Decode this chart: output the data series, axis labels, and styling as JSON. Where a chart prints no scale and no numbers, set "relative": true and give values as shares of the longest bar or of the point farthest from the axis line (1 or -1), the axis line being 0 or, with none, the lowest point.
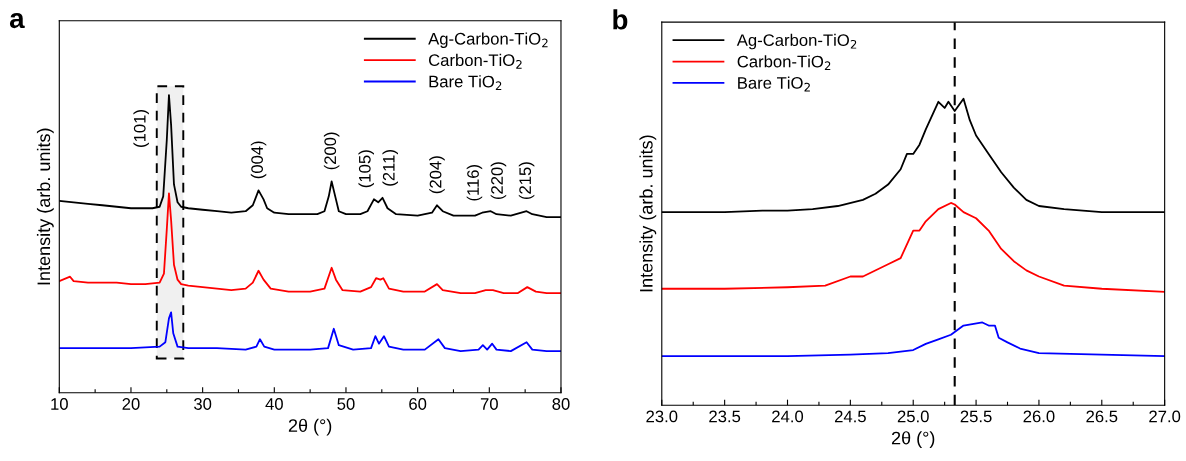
{
  "chart_data": [
    {
      "type": "line",
      "relative": true,
      "xlabel": "2θ (°)",
      "ylabel": "Intensity (arb. units)",
      "xlim": [
        10,
        80
      ],
      "xticks": [
        10,
        {
          "value": 15,
          "label": null
        },
        20,
        {
          "value": 25,
          "label": null
        },
        30,
        {
          "value": 35,
          "label": null
        },
        40,
        {
          "value": 45,
          "label": null
        },
        50,
        {
          "value": 55,
          "label": null
        },
        60,
        {
          "value": 65,
          "label": null
        },
        70,
        {
          "value": 75,
          "label": null
        },
        80
      ],
      "tick_labels": "x",
      "legend": "top right",
      "grid": false,
      "marker": "none",
      "line_style": "solid",
      "series": [
        {
          "name": "Ag-Carbon-TiO$_{2}$",
          "color": "#000000",
          "x": [
            10,
            12,
            14,
            16,
            18,
            20,
            22,
            23,
            24,
            24.5,
            25,
            25.3,
            25.6,
            26,
            26.5,
            27,
            28,
            30,
            32,
            34,
            36,
            37,
            37.8,
            38.5,
            39,
            40,
            42,
            44,
            46,
            47,
            47.6,
            48,
            48.5,
            49,
            50,
            52,
            53,
            53.9,
            54.5,
            55.1,
            55.8,
            57,
            60,
            62,
            62.7,
            63.5,
            65,
            68,
            69,
            70.2,
            71,
            73,
            75.2,
            76,
            78,
            80
          ],
          "values": [
            0.645,
            0.64,
            0.635,
            0.63,
            0.625,
            0.62,
            0.62,
            0.62,
            0.625,
            0.66,
            0.85,
            1.0,
            0.9,
            0.7,
            0.64,
            0.625,
            0.62,
            0.615,
            0.61,
            0.605,
            0.61,
            0.63,
            0.68,
            0.65,
            0.62,
            0.605,
            0.6,
            0.6,
            0.6,
            0.61,
            0.66,
            0.71,
            0.66,
            0.61,
            0.6,
            0.6,
            0.61,
            0.65,
            0.64,
            0.655,
            0.62,
            0.6,
            0.595,
            0.605,
            0.63,
            0.61,
            0.595,
            0.595,
            0.605,
            0.61,
            0.6,
            0.595,
            0.61,
            0.6,
            0.59,
            0.59
          ]
        },
        {
          "name": "Carbon-TiO$_{2}$",
          "color": "#ff0000",
          "x": [
            10,
            11.5,
            12,
            14,
            16,
            18,
            20,
            22,
            24,
            24.6,
            25,
            25.3,
            25.6,
            26,
            26.5,
            27,
            28,
            30,
            32,
            34,
            36,
            37,
            37.8,
            38.5,
            39.5,
            42,
            45,
            47,
            48,
            48.6,
            49.5,
            52,
            53.5,
            54.2,
            54.8,
            55.2,
            56,
            58,
            61,
            62.7,
            63.5,
            66,
            68,
            69.5,
            70.5,
            72,
            74,
            75.3,
            76.5,
            78,
            80
          ],
          "values": [
            0.375,
            0.39,
            0.375,
            0.37,
            0.37,
            0.37,
            0.365,
            0.365,
            0.37,
            0.4,
            0.55,
            0.67,
            0.58,
            0.43,
            0.38,
            0.365,
            0.36,
            0.355,
            0.35,
            0.345,
            0.35,
            0.37,
            0.41,
            0.38,
            0.35,
            0.34,
            0.34,
            0.35,
            0.42,
            0.38,
            0.345,
            0.34,
            0.355,
            0.385,
            0.38,
            0.385,
            0.35,
            0.34,
            0.34,
            0.365,
            0.345,
            0.335,
            0.335,
            0.345,
            0.345,
            0.335,
            0.335,
            0.355,
            0.34,
            0.335,
            0.335
          ]
        },
        {
          "name": "Bare TiO$_{2}$",
          "color": "#0000ff",
          "x": [
            10,
            15,
            20,
            24,
            24.8,
            25.3,
            25.6,
            25.9,
            26.5,
            28,
            32,
            36,
            37.5,
            38,
            38.6,
            40,
            45,
            47.5,
            48.3,
            49,
            51,
            53.5,
            54.1,
            54.6,
            55.3,
            56,
            58,
            61,
            62.9,
            63.8,
            66,
            68.5,
            69.1,
            69.7,
            70.4,
            71,
            73,
            75.2,
            76,
            78,
            80
          ],
          "values": [
            0.15,
            0.15,
            0.15,
            0.155,
            0.17,
            0.25,
            0.27,
            0.2,
            0.155,
            0.15,
            0.15,
            0.145,
            0.155,
            0.18,
            0.155,
            0.145,
            0.145,
            0.15,
            0.215,
            0.16,
            0.145,
            0.15,
            0.19,
            0.165,
            0.19,
            0.155,
            0.145,
            0.145,
            0.18,
            0.15,
            0.14,
            0.145,
            0.16,
            0.145,
            0.165,
            0.145,
            0.14,
            0.17,
            0.145,
            0.14,
            0.14
          ]
        }
      ],
      "bands": [
        {
          "axis": "x",
          "from": 23.6,
          "to": 27.3,
          "color": "#000000"
        }
      ],
      "annotations": [
        "a",
        {
          "text": "(101)",
          "x": 25.3,
          "y": 1.0
        },
        {
          "text": "(004)",
          "x": 37.8,
          "y": 0.68
        },
        {
          "text": "(200)",
          "x": 48,
          "y": 0.71
        },
        {
          "text": "(105)",
          "x": 53.9,
          "y": 0.65
        },
        {
          "text": "(211)",
          "x": 55.1,
          "y": 0.655
        },
        {
          "text": "(204)",
          "x": 62.7,
          "y": 0.63
        },
        {
          "text": "(116)",
          "x": 69,
          "y": 0.605
        },
        {
          "text": "(220)",
          "x": 70.2,
          "y": 0.61
        },
        {
          "text": "(215)",
          "x": 75.2,
          "y": 0.61
        }
      ]
    },
    {
      "type": "line",
      "relative": true,
      "xlabel": "2θ (°)",
      "ylabel": "Intensity (arb. units)",
      "xlim": [
        23,
        27
      ],
      "xticks": [
        {
          "value": 23,
          "label": "23.0"
        },
        {
          "value": 23.25,
          "label": null
        },
        {
          "value": 23.5,
          "label": "23.5"
        },
        {
          "value": 23.75,
          "label": null
        },
        {
          "value": 24,
          "label": "24.0"
        },
        {
          "value": 24.25,
          "label": null
        },
        {
          "value": 24.5,
          "label": "24.5"
        },
        {
          "value": 24.75,
          "label": null
        },
        {
          "value": 25,
          "label": "25.0"
        },
        {
          "value": 25.25,
          "label": null
        },
        {
          "value": 25.5,
          "label": "25.5"
        },
        {
          "value": 25.75,
          "label": null
        },
        {
          "value": 26,
          "label": "26.0"
        },
        {
          "value": 26.25,
          "label": null
        },
        {
          "value": 26.5,
          "label": "26.5"
        },
        {
          "value": 26.75,
          "label": null
        },
        {
          "value": 27,
          "label": "27.0"
        }
      ],
      "tick_labels": "x",
      "legend": "top left",
      "grid": false,
      "marker": "none",
      "line_style": "solid",
      "series": [
        {
          "name": "Ag-Carbon-TiO$_{2}$",
          "color": "#000000",
          "x": [
            23,
            23.2,
            23.5,
            23.8,
            24,
            24.2,
            24.4,
            24.6,
            24.7,
            24.8,
            24.9,
            24.95,
            25,
            25.05,
            25.1,
            25.2,
            25.25,
            25.28,
            25.33,
            25.4,
            25.45,
            25.5,
            25.6,
            25.7,
            25.8,
            25.9,
            26,
            26.2,
            26.5,
            26.8,
            27
          ],
          "values": [
            0.63,
            0.63,
            0.63,
            0.635,
            0.635,
            0.64,
            0.65,
            0.67,
            0.69,
            0.72,
            0.77,
            0.82,
            0.82,
            0.85,
            0.9,
            0.99,
            0.97,
            0.99,
            0.96,
            1.0,
            0.93,
            0.88,
            0.82,
            0.76,
            0.71,
            0.67,
            0.65,
            0.64,
            0.63,
            0.63,
            0.63
          ]
        },
        {
          "name": "Carbon-TiO$_{2}$",
          "color": "#ff0000",
          "x": [
            23,
            23.5,
            24,
            24.3,
            24.5,
            24.6,
            24.8,
            24.9,
            25,
            25.05,
            25.1,
            25.2,
            25.3,
            25.33,
            25.4,
            25.5,
            25.6,
            25.7,
            25.8,
            25.9,
            26,
            26.2,
            26.5,
            27
          ],
          "values": [
            0.38,
            0.38,
            0.385,
            0.39,
            0.42,
            0.42,
            0.46,
            0.48,
            0.57,
            0.57,
            0.6,
            0.64,
            0.66,
            0.655,
            0.63,
            0.61,
            0.57,
            0.51,
            0.47,
            0.44,
            0.42,
            0.39,
            0.38,
            0.37
          ]
        },
        {
          "name": "Bare TiO$_{2}$",
          "color": "#0000ff",
          "x": [
            23,
            23.5,
            24,
            24.5,
            24.8,
            25,
            25.1,
            25.2,
            25.3,
            25.4,
            25.55,
            25.6,
            25.65,
            25.68,
            25.75,
            25.85,
            26,
            26.5,
            27
          ],
          "values": [
            0.16,
            0.16,
            0.16,
            0.165,
            0.17,
            0.18,
            0.2,
            0.215,
            0.23,
            0.26,
            0.27,
            0.26,
            0.26,
            0.22,
            0.205,
            0.185,
            0.17,
            0.165,
            0.16
          ]
        }
      ],
      "ref_lines": [
        {
          "axis": "x",
          "value": 25.33,
          "color": "#000000",
          "line_style": "dashed"
        }
      ],
      "annotations": [
        "b"
      ]
    }
  ]
}
